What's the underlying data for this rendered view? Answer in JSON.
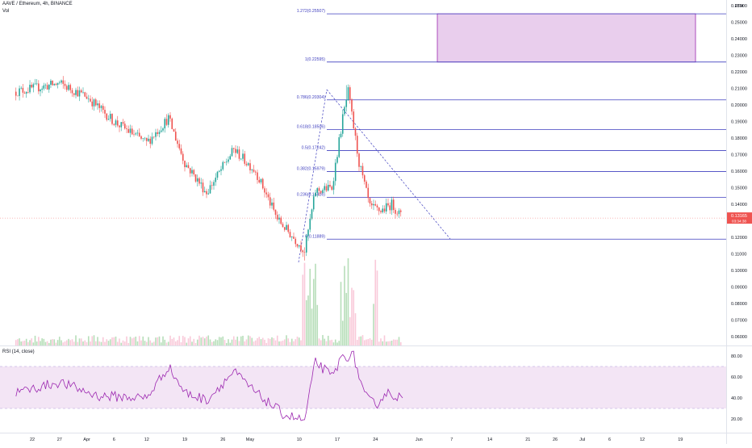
{
  "legend": {
    "symbol": "AAVE / Ethereum, 4h, BINANCE",
    "volume_label": "Vol",
    "rsi_label": "RSI (14, close)"
  },
  "price_axis": {
    "currency": "ETH",
    "ticks": [
      "0.26000",
      "0.25000",
      "0.24000",
      "0.23000",
      "0.22000",
      "0.21000",
      "0.20000",
      "0.19000",
      "0.18000",
      "0.17000",
      "0.16000",
      "0.15000",
      "0.14000",
      "0.12000",
      "0.11000",
      "0.10000",
      "0.09000",
      "0.08000",
      "0.07000",
      "0.06000"
    ],
    "current_price": "0.13165",
    "countdown": "03:34:38"
  },
  "rsi_axis": {
    "ticks": [
      "80.00",
      "60.00",
      "40.00",
      "20.00"
    ]
  },
  "time_axis": {
    "ticks": [
      "22",
      "27",
      "Apr",
      "6",
      "12",
      "19",
      "26",
      "May",
      "10",
      "17",
      "24",
      "Jun",
      "7",
      "14",
      "21",
      "26",
      "Jul",
      "6",
      "12",
      "19"
    ]
  },
  "fib_levels": [
    {
      "label": "1.272(0.25507)"
    },
    {
      "label": "1(0.22595)"
    },
    {
      "label": "0.786(0.20304)"
    },
    {
      "label": "0.618(0.18506)"
    },
    {
      "label": "0.5(0.17242)"
    },
    {
      "label": "0.382(0.15979)"
    },
    {
      "label": "0.236(0.14416)"
    },
    {
      "label": "0(0.11889)"
    }
  ],
  "colors": {
    "up": "#26a69a",
    "down": "#ef5350",
    "fib_line": "#3f3fbf",
    "target_box": "#e1bee7",
    "rsi_line": "#9c27b0",
    "rsi_band": "#f3e5f5",
    "price_tag": "#ef5350"
  },
  "chart_data": {
    "type": "candlestick",
    "title": "AAVE / Ethereum, 4h, BINANCE",
    "x_dates": [
      "22",
      "27",
      "Apr",
      "6",
      "12",
      "19",
      "26",
      "May",
      "10",
      "17",
      "24",
      "Jun",
      "7",
      "14",
      "21",
      "26",
      "Jul",
      "6",
      "12",
      "19"
    ],
    "y_axis": {
      "ylim": [
        0.055,
        0.265
      ],
      "unit": "ETH"
    },
    "price_path_keypoints": [
      {
        "x": "Mar 19",
        "close": 0.208
      },
      {
        "x": "Mar 27",
        "close": 0.213
      },
      {
        "x": "Apr 1",
        "close": 0.205
      },
      {
        "x": "Apr 6",
        "close": 0.19
      },
      {
        "x": "Apr 12",
        "close": 0.177
      },
      {
        "x": "Apr 16",
        "close": 0.192
      },
      {
        "x": "Apr 19",
        "close": 0.165
      },
      {
        "x": "Apr 23",
        "close": 0.147
      },
      {
        "x": "Apr 28",
        "close": 0.173
      },
      {
        "x": "May 2",
        "close": 0.16
      },
      {
        "x": "May 6",
        "close": 0.131
      },
      {
        "x": "May 11",
        "close": 0.112
      },
      {
        "x": "May 13",
        "close": 0.148
      },
      {
        "x": "May 16",
        "close": 0.15
      },
      {
        "x": "May 18",
        "close": 0.192
      },
      {
        "x": "May 19",
        "close": 0.208
      },
      {
        "x": "May 21",
        "close": 0.165
      },
      {
        "x": "May 23",
        "close": 0.138
      },
      {
        "x": "May 25",
        "close": 0.136
      },
      {
        "x": "May 27",
        "close": 0.14
      },
      {
        "x": "May 29",
        "close": 0.13165
      }
    ],
    "fibonacci": [
      {
        "ratio": 1.272,
        "value": 0.25507
      },
      {
        "ratio": 1,
        "value": 0.22595
      },
      {
        "ratio": 0.786,
        "value": 0.20304
      },
      {
        "ratio": 0.618,
        "value": 0.18506
      },
      {
        "ratio": 0.5,
        "value": 0.17242
      },
      {
        "ratio": 0.382,
        "value": 0.15979
      },
      {
        "ratio": 0.236,
        "value": 0.14416
      },
      {
        "ratio": 0,
        "value": 0.11889
      }
    ],
    "target_zone": {
      "from": 0.22595,
      "to": 0.25507
    },
    "current_price": 0.13165,
    "rsi": {
      "period": 14,
      "ylim": [
        10,
        90
      ],
      "band": [
        30,
        70
      ],
      "keypoints": [
        {
          "x": "Mar 19",
          "value": 45
        },
        {
          "x": "Mar 27",
          "value": 55
        },
        {
          "x": "Apr 3",
          "value": 42
        },
        {
          "x": "Apr 12",
          "value": 40
        },
        {
          "x": "Apr 16",
          "value": 70
        },
        {
          "x": "Apr 19",
          "value": 45
        },
        {
          "x": "Apr 23",
          "value": 38
        },
        {
          "x": "Apr 28",
          "value": 65
        },
        {
          "x": "May 2",
          "value": 45
        },
        {
          "x": "May 7",
          "value": 25
        },
        {
          "x": "May 11",
          "value": 18
        },
        {
          "x": "May 13",
          "value": 75
        },
        {
          "x": "May 16",
          "value": 60
        },
        {
          "x": "May 18",
          "value": 80
        },
        {
          "x": "May 20",
          "value": 80
        },
        {
          "x": "May 22",
          "value": 42
        },
        {
          "x": "May 24",
          "value": 33
        },
        {
          "x": "May 26",
          "value": 45
        },
        {
          "x": "May 29",
          "value": 40
        }
      ]
    }
  }
}
